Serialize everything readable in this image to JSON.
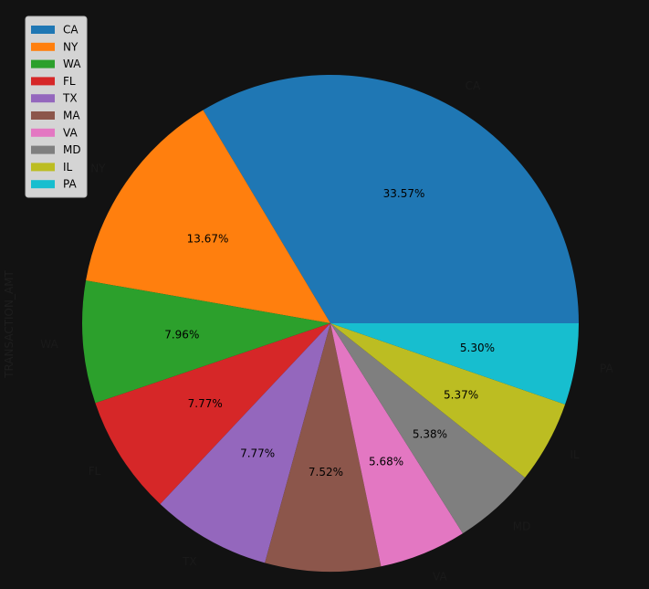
{
  "chart_data": {
    "type": "pie",
    "ylabel": "TRANSACTION_AMT",
    "legend_position": "top-left",
    "slices": [
      {
        "label": "CA",
        "value": 33.57,
        "pct_label": "33.57%",
        "color": "#1f77b4"
      },
      {
        "label": "NY",
        "value": 13.67,
        "pct_label": "13.67%",
        "color": "#ff7f0e"
      },
      {
        "label": "WA",
        "value": 7.96,
        "pct_label": "7.96%",
        "color": "#2ca02c"
      },
      {
        "label": "FL",
        "value": 7.77,
        "pct_label": "7.77%",
        "color": "#d62728"
      },
      {
        "label": "TX",
        "value": 7.77,
        "pct_label": "7.77%",
        "color": "#9467bd"
      },
      {
        "label": "MA",
        "value": 7.52,
        "pct_label": "7.52%",
        "color": "#8c564b"
      },
      {
        "label": "VA",
        "value": 5.68,
        "pct_label": "5.68%",
        "color": "#e377c2"
      },
      {
        "label": "MD",
        "value": 5.38,
        "pct_label": "5.38%",
        "color": "#7f7f7f"
      },
      {
        "label": "IL",
        "value": 5.37,
        "pct_label": "5.37%",
        "color": "#bcbd22"
      },
      {
        "label": "PA",
        "value": 5.3,
        "pct_label": "5.30%",
        "color": "#17becf"
      }
    ]
  }
}
